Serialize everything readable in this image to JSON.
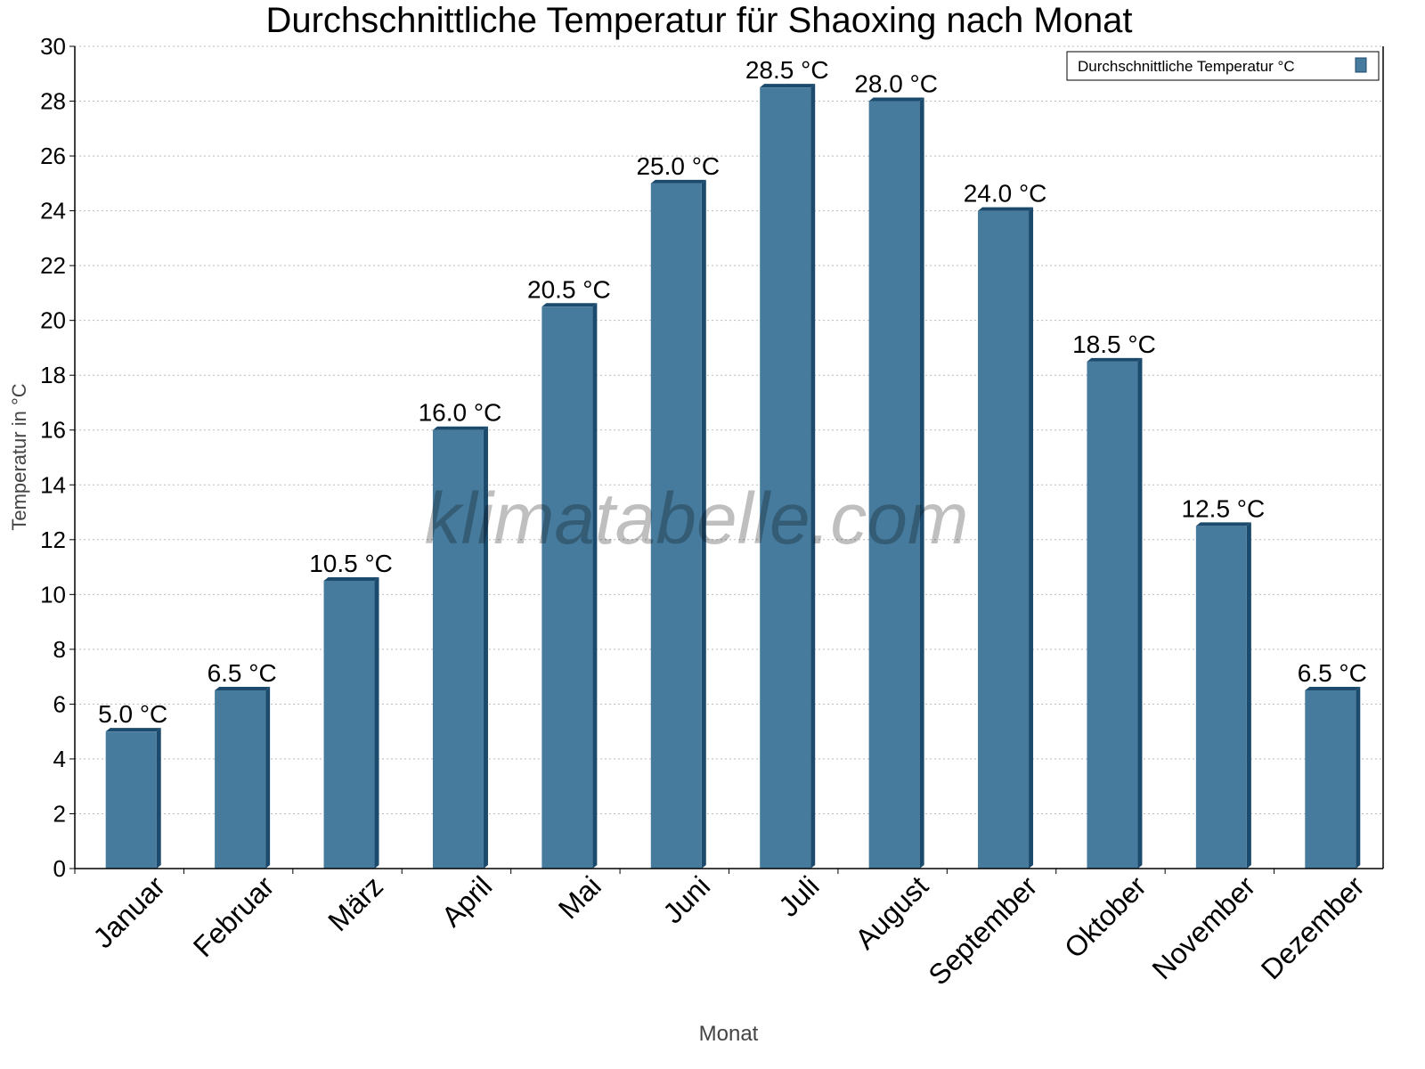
{
  "chart_data": {
    "type": "bar",
    "title": "Durchschnittliche Temperatur für Shaoxing nach Monat",
    "xlabel": "Monat",
    "ylabel": "Temperatur in °C",
    "ylim": [
      0,
      30
    ],
    "yticks": [
      0,
      2,
      4,
      6,
      8,
      10,
      12,
      14,
      16,
      18,
      20,
      22,
      24,
      26,
      28,
      30
    ],
    "grid": true,
    "legend_position": "top-right",
    "categories": [
      "Januar",
      "Februar",
      "März",
      "April",
      "Mai",
      "Juni",
      "Juli",
      "August",
      "September",
      "Oktober",
      "November",
      "Dezember"
    ],
    "series": [
      {
        "name": "Durchschnittliche Temperatur °C",
        "values": [
          5.0,
          6.5,
          10.5,
          16.0,
          20.5,
          25.0,
          28.5,
          28.0,
          24.0,
          18.5,
          12.5,
          6.5
        ],
        "data_labels": [
          "5.0 °C",
          "6.5 °C",
          "10.5 °C",
          "16.0 °C",
          "20.5 °C",
          "25.0 °C",
          "28.5 °C",
          "28.0 °C",
          "24.0 °C",
          "18.5 °C",
          "12.5 °C",
          "6.5 °C"
        ],
        "color": "#467b9d",
        "side_color": "#1c4a6c"
      }
    ],
    "watermark": "klimatabelle.com"
  }
}
